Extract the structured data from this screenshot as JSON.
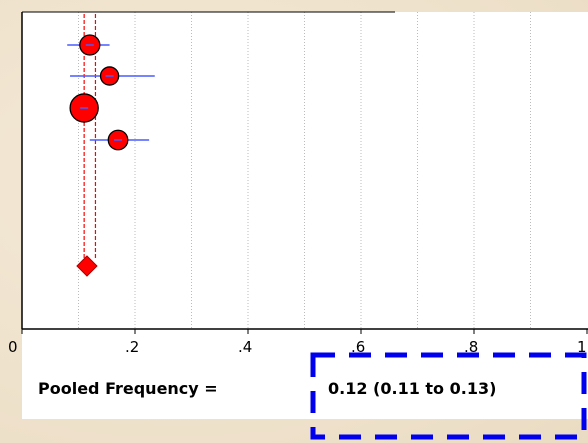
{
  "chart_data": {
    "type": "scatter",
    "title": "",
    "xlabel": "",
    "ylabel": "",
    "xlim": [
      0,
      1
    ],
    "xticks": [
      0,
      0.2,
      0.4,
      0.6,
      0.8,
      1
    ],
    "xtick_labels": [
      "0",
      ".2",
      ".4",
      ".6",
      ".8",
      "1"
    ],
    "grid": "vertical",
    "studies": [
      {
        "estimate": 0.12,
        "ci_low": 0.08,
        "ci_high": 0.155,
        "weight": 1.0
      },
      {
        "estimate": 0.155,
        "ci_low": 0.085,
        "ci_high": 0.235,
        "weight": 0.8
      },
      {
        "estimate": 0.11,
        "ci_low": 0.09,
        "ci_high": 0.13,
        "weight": 2.1
      },
      {
        "estimate": 0.17,
        "ci_low": 0.12,
        "ci_high": 0.225,
        "weight": 0.95
      }
    ],
    "pooled": {
      "estimate": 0.115,
      "ci_low": 0.11,
      "ci_high": 0.13
    }
  },
  "footer": {
    "label": "Pooled Frequency =",
    "value": "0.12 (0.11 to 0.13)"
  },
  "colors": {
    "point": "#ff0000",
    "ci_line": "#4a5cff",
    "pooled_line": "#ff0000",
    "highlight_box": "#0000ee",
    "grid": "#bbbbbb"
  }
}
